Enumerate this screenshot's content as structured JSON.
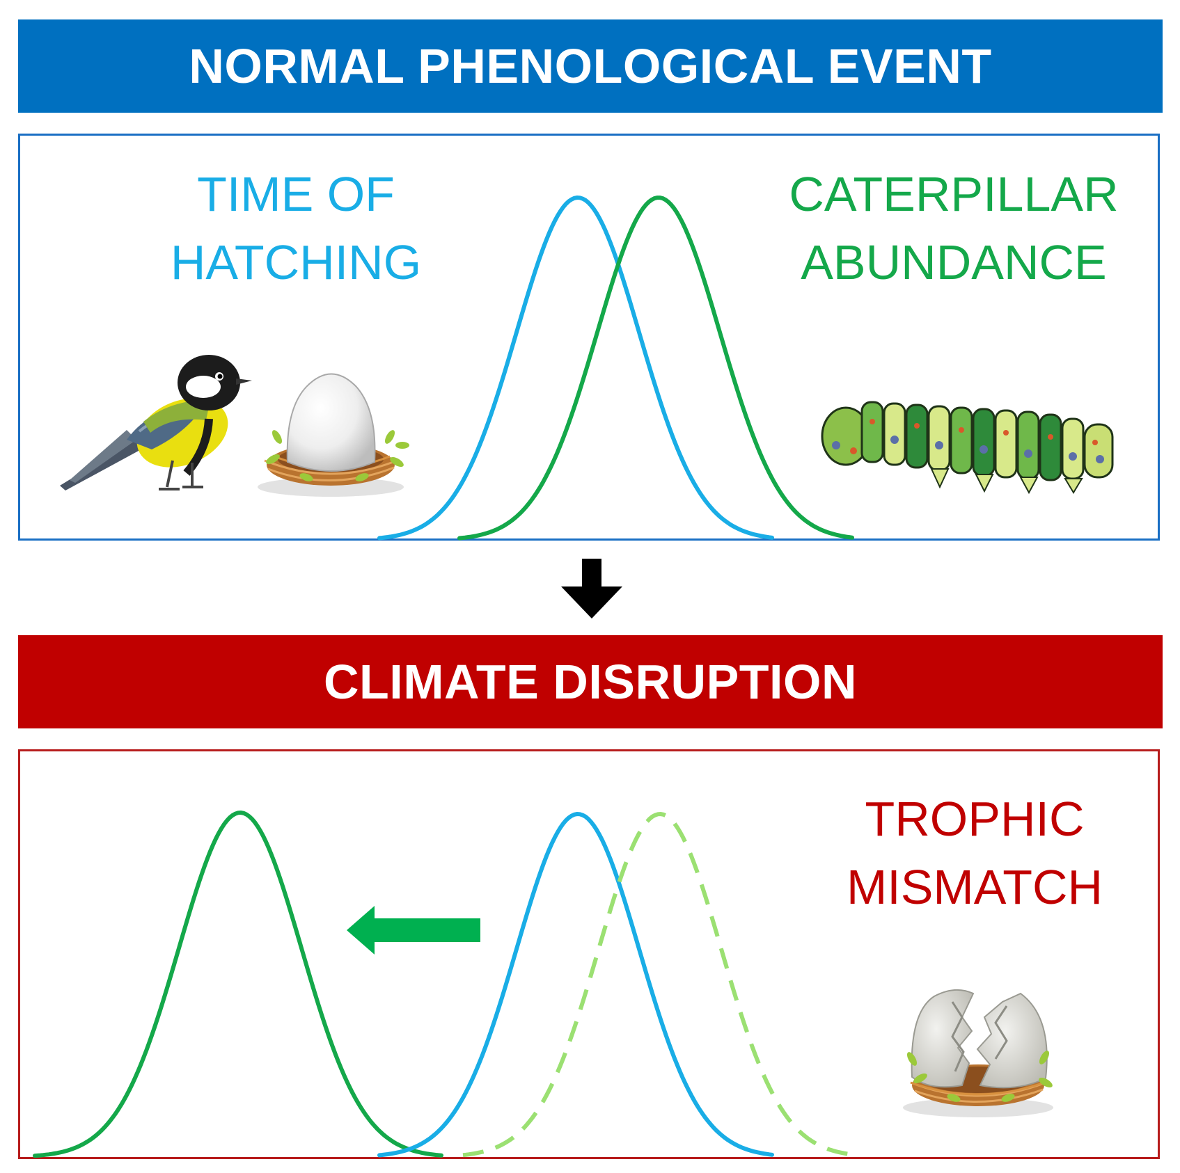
{
  "colors": {
    "normal_banner": "#0070c0",
    "disruption_banner": "#c00000",
    "hatching_curve": "#19ade6",
    "caterpillar_curve": "#14a84a",
    "previous_caterpillar_curve": "#9be072",
    "shift_arrow": "#00b050",
    "trophic_label": "#c00000"
  },
  "top_section": {
    "title": "NORMAL PHENOLOGICAL EVENT",
    "hatching_label_line1": "TIME OF",
    "hatching_label_line2": "HATCHING",
    "caterpillar_label_line1": "CATERPILLAR",
    "caterpillar_label_line2": "ABUNDANCE",
    "icons": [
      "bird-icon",
      "egg-in-nest-icon",
      "caterpillar-icon"
    ]
  },
  "transition_arrow": "down-arrow-icon",
  "bottom_section": {
    "title": "CLIMATE DISRUPTION",
    "mismatch_label_line1": "TROPHIC",
    "mismatch_label_line2": "MISMATCH",
    "shift_direction": "left",
    "icons": [
      "cracked-egg-in-nest-icon"
    ]
  }
}
